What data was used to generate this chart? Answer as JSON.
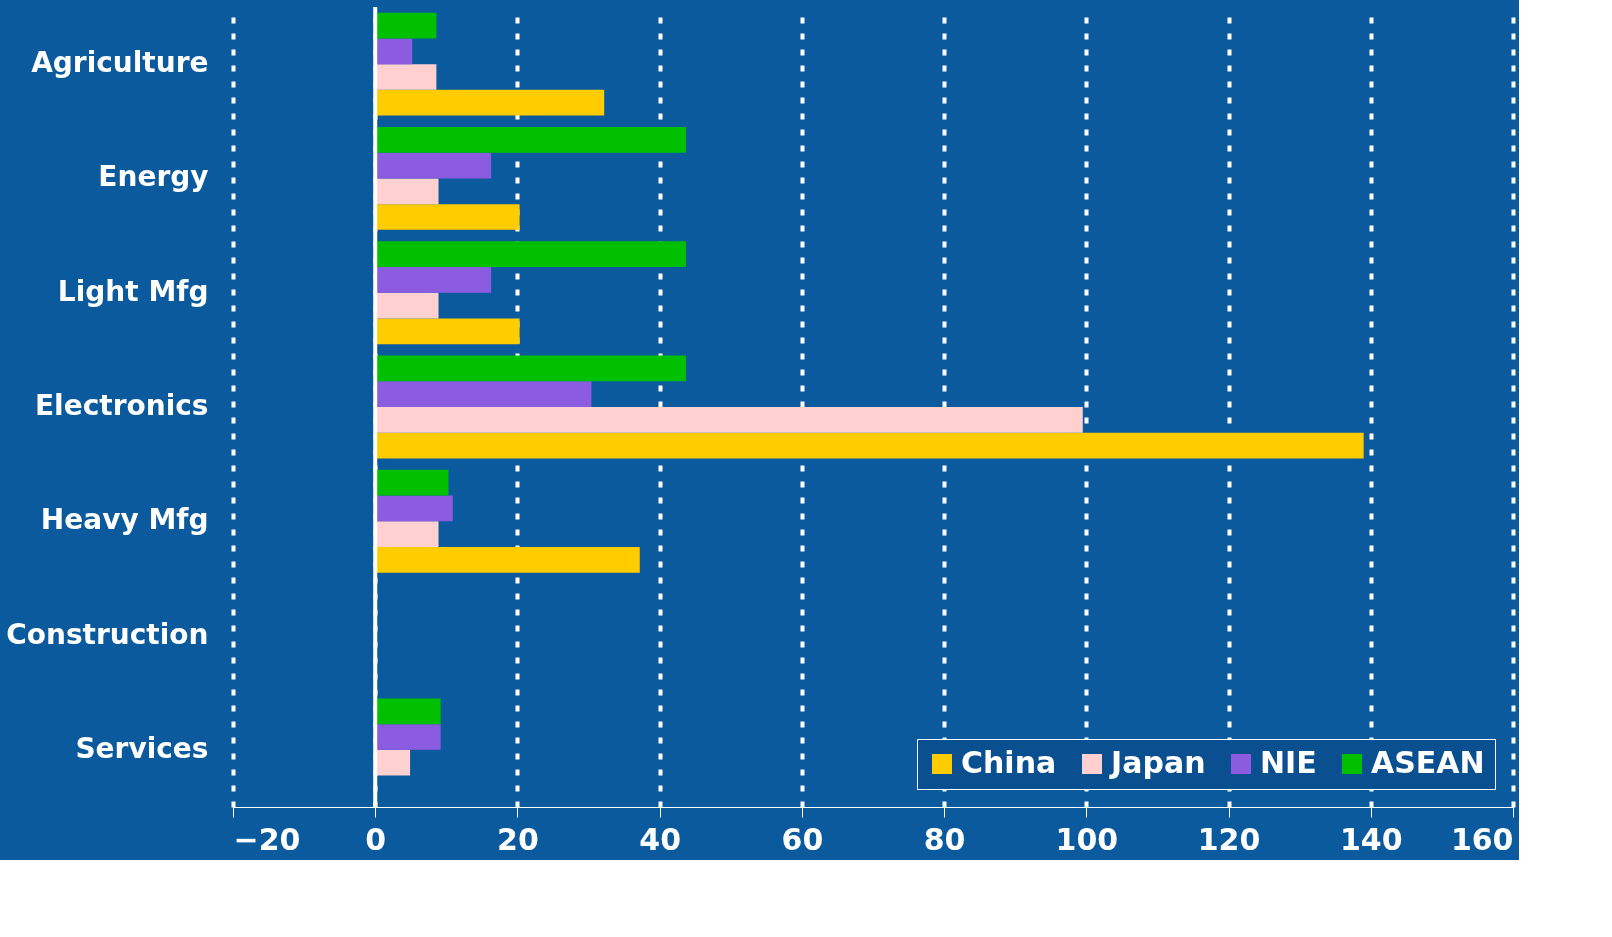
{
  "chart_data": {
    "type": "bar",
    "orientation": "horizontal",
    "categories": [
      "Agriculture",
      "Energy",
      "Light Mfg",
      "Electronics",
      "Heavy Mfg",
      "Construction",
      "Services"
    ],
    "series": [
      {
        "name": "China",
        "color": "#ffcc00",
        "values": [
          32.2,
          20.3,
          20.3,
          139,
          37.2,
          null,
          null
        ]
      },
      {
        "name": "Japan",
        "color": "#ffd0d0",
        "values": [
          8.6,
          8.9,
          8.9,
          99.5,
          8.9,
          null,
          4.9
        ]
      },
      {
        "name": "NIE",
        "color": "#8c5ce0",
        "values": [
          5.2,
          16.3,
          16.3,
          30.4,
          10.9,
          null,
          9.2
        ]
      },
      {
        "name": "ASEAN",
        "color": "#00c000",
        "values": [
          8.6,
          43.7,
          43.7,
          43.7,
          10.3,
          null,
          9.2
        ]
      }
    ],
    "xlim": [
      -20,
      160
    ],
    "xticks": [
      -20,
      0,
      20,
      40,
      60,
      80,
      100,
      120,
      140,
      160
    ],
    "grid": "x",
    "legend": "bottom right"
  }
}
